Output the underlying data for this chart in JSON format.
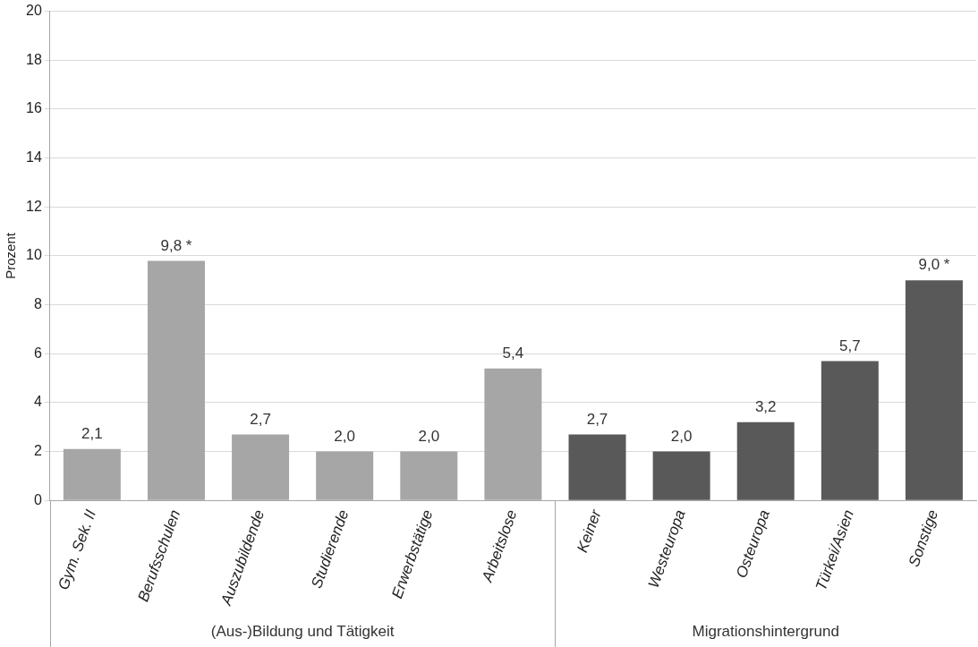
{
  "chart_data": {
    "type": "bar",
    "ylabel": "Prozent",
    "categories": [
      "Gym. Sek. II",
      "Berufsschulen",
      "Auszubildende",
      "Studierende",
      "Erwerbstätige",
      "Arbeitslose",
      "Keiner",
      "Westeuropa",
      "Osteuropa",
      "Türkei/Asien",
      "Sonstige"
    ],
    "values": [
      2.1,
      9.8,
      2.7,
      2.0,
      2.0,
      5.4,
      2.7,
      2.0,
      3.2,
      5.7,
      9.0
    ],
    "colors": [
      "#a6a6a6",
      "#a6a6a6",
      "#a6a6a6",
      "#a6a6a6",
      "#a6a6a6",
      "#a6a6a6",
      "#595959",
      "#595959",
      "#595959",
      "#595959",
      "#595959"
    ],
    "value_labels": [
      "2,1",
      "9,8 *",
      "2,7",
      "2,0",
      "2,0",
      "5,4",
      "2,7",
      "2,0",
      "3,2",
      "5,7",
      "9,0 *"
    ],
    "annotations": [
      "(Aus-)Bildung und Tätigkeit",
      "Migrationshintergrund"
    ],
    "ylim": [
      0,
      20
    ],
    "yticks": [
      0,
      2,
      4,
      6,
      8,
      10,
      12,
      14,
      16,
      18,
      20
    ],
    "grid": "y",
    "legend": false
  }
}
